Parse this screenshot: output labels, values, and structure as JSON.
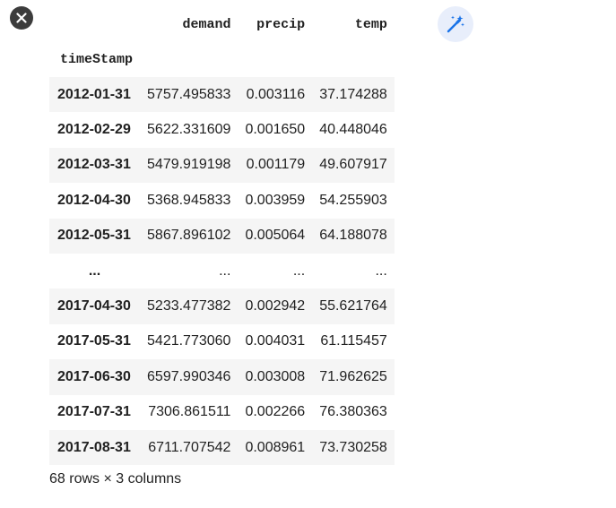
{
  "toolbar": {
    "close_icon": "close-icon",
    "magic_icon": "magic-wand-icon"
  },
  "dataframe": {
    "columns": [
      "demand",
      "precip",
      "temp"
    ],
    "index_name": "timeStamp",
    "rows": [
      {
        "index": "2012-01-31",
        "values": [
          "5757.495833",
          "0.003116",
          "37.174288"
        ]
      },
      {
        "index": "2012-02-29",
        "values": [
          "5622.331609",
          "0.001650",
          "40.448046"
        ]
      },
      {
        "index": "2012-03-31",
        "values": [
          "5479.919198",
          "0.001179",
          "49.607917"
        ]
      },
      {
        "index": "2012-04-30",
        "values": [
          "5368.945833",
          "0.003959",
          "54.255903"
        ]
      },
      {
        "index": "2012-05-31",
        "values": [
          "5867.896102",
          "0.005064",
          "64.188078"
        ]
      },
      {
        "index": "...",
        "values": [
          "...",
          "...",
          "..."
        ]
      },
      {
        "index": "2017-04-30",
        "values": [
          "5233.477382",
          "0.002942",
          "55.621764"
        ]
      },
      {
        "index": "2017-05-31",
        "values": [
          "5421.773060",
          "0.004031",
          "61.115457"
        ]
      },
      {
        "index": "2017-06-30",
        "values": [
          "6597.990346",
          "0.003008",
          "71.962625"
        ]
      },
      {
        "index": "2017-07-31",
        "values": [
          "7306.861511",
          "0.002266",
          "76.380363"
        ]
      },
      {
        "index": "2017-08-31",
        "values": [
          "6711.707542",
          "0.008961",
          "73.730258"
        ]
      }
    ],
    "shape_text": "68 rows × 3 columns"
  },
  "colors": {
    "close_bg": "#3c3c3c",
    "magic_bg": "#e8eefb",
    "magic_icon": "#1a73e8",
    "stripe": "#f5f5f5"
  }
}
